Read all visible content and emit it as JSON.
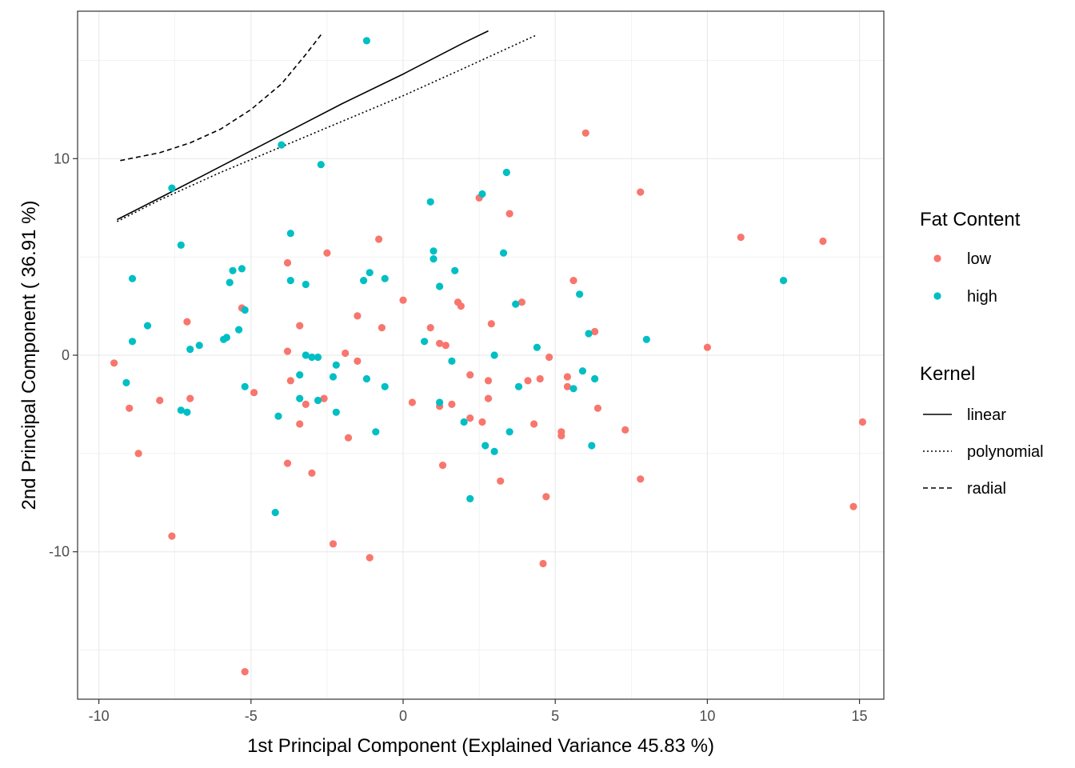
{
  "chart_data": {
    "type": "scatter",
    "title": "",
    "xlabel": "1st Principal Component (Explained Variance 45.83 %)",
    "ylabel": "2nd Principal Component ( 36.91 %)",
    "xlim": [
      -10.7,
      15.8
    ],
    "ylim": [
      -17.5,
      17.5
    ],
    "x_ticks": [
      -10,
      -5,
      0,
      5,
      10,
      15
    ],
    "x_tick_labels": [
      "-10",
      "-5",
      "0",
      "5",
      "10",
      "15"
    ],
    "y_ticks": [
      -10,
      0,
      10
    ],
    "y_tick_labels": [
      "-10",
      "0",
      "10"
    ],
    "grid": true,
    "legend_position": "right",
    "colors": {
      "low": "#F8766D",
      "high": "#00BFC4",
      "line": "#000000",
      "grid": "#ebebeb"
    },
    "series": [
      {
        "name": "low",
        "points": [
          [
            -9.5,
            -0.4
          ],
          [
            -9.0,
            -2.7
          ],
          [
            -8.7,
            -5.0
          ],
          [
            -8.0,
            -2.3
          ],
          [
            -7.6,
            -9.2
          ],
          [
            -7.1,
            1.7
          ],
          [
            -7.0,
            -2.2
          ],
          [
            -5.3,
            2.4
          ],
          [
            -5.2,
            -16.1
          ],
          [
            -4.9,
            -1.9
          ],
          [
            -3.8,
            4.7
          ],
          [
            -3.8,
            0.2
          ],
          [
            -3.7,
            -1.3
          ],
          [
            -3.8,
            -5.5
          ],
          [
            -3.4,
            1.5
          ],
          [
            -3.4,
            -3.5
          ],
          [
            -3.2,
            -2.5
          ],
          [
            -3.0,
            -6.0
          ],
          [
            -2.6,
            -2.2
          ],
          [
            -2.5,
            5.2
          ],
          [
            -2.3,
            -9.6
          ],
          [
            -1.9,
            0.1
          ],
          [
            -1.8,
            -4.2
          ],
          [
            -1.5,
            2.0
          ],
          [
            -1.5,
            -0.3
          ],
          [
            -1.1,
            -10.3
          ],
          [
            -0.8,
            5.9
          ],
          [
            -0.7,
            1.4
          ],
          [
            0.0,
            2.8
          ],
          [
            0.3,
            -2.4
          ],
          [
            0.9,
            1.4
          ],
          [
            1.2,
            0.6
          ],
          [
            1.2,
            -2.6
          ],
          [
            1.3,
            -5.6
          ],
          [
            1.4,
            0.5
          ],
          [
            1.6,
            -2.5
          ],
          [
            1.8,
            2.7
          ],
          [
            1.9,
            2.5
          ],
          [
            2.2,
            -1.0
          ],
          [
            2.2,
            -3.2
          ],
          [
            2.5,
            8.0
          ],
          [
            2.6,
            -3.4
          ],
          [
            2.8,
            -2.2
          ],
          [
            2.8,
            -1.3
          ],
          [
            2.9,
            1.6
          ],
          [
            3.2,
            -6.4
          ],
          [
            3.5,
            7.2
          ],
          [
            3.9,
            2.7
          ],
          [
            4.1,
            -1.3
          ],
          [
            4.3,
            -3.5
          ],
          [
            4.5,
            -1.2
          ],
          [
            4.6,
            -10.6
          ],
          [
            4.7,
            -7.2
          ],
          [
            4.8,
            -0.1
          ],
          [
            5.2,
            -4.1
          ],
          [
            5.2,
            -3.9
          ],
          [
            5.4,
            -1.1
          ],
          [
            5.4,
            -1.6
          ],
          [
            5.6,
            3.8
          ],
          [
            6.0,
            11.3
          ],
          [
            6.3,
            1.2
          ],
          [
            6.4,
            -2.7
          ],
          [
            7.3,
            -3.8
          ],
          [
            7.8,
            8.3
          ],
          [
            7.8,
            -6.3
          ],
          [
            10.0,
            0.4
          ],
          [
            11.1,
            6.0
          ],
          [
            13.8,
            5.8
          ],
          [
            14.8,
            -7.7
          ],
          [
            15.1,
            -3.4
          ]
        ]
      },
      {
        "name": "high",
        "points": [
          [
            -9.1,
            -1.4
          ],
          [
            -8.9,
            3.9
          ],
          [
            -8.9,
            0.7
          ],
          [
            -8.4,
            1.5
          ],
          [
            -7.6,
            8.5
          ],
          [
            -7.3,
            -2.8
          ],
          [
            -7.3,
            5.6
          ],
          [
            -7.1,
            -2.9
          ],
          [
            -7.0,
            0.3
          ],
          [
            -6.7,
            0.5
          ],
          [
            -5.9,
            0.8
          ],
          [
            -5.8,
            0.9
          ],
          [
            -5.7,
            3.7
          ],
          [
            -5.6,
            4.3
          ],
          [
            -5.4,
            1.3
          ],
          [
            -5.3,
            4.4
          ],
          [
            -5.2,
            -1.6
          ],
          [
            -5.2,
            2.3
          ],
          [
            -4.1,
            -3.1
          ],
          [
            -4.2,
            -8.0
          ],
          [
            -4.0,
            10.7
          ],
          [
            -3.7,
            6.2
          ],
          [
            -3.7,
            3.8
          ],
          [
            -3.4,
            -1.0
          ],
          [
            -3.4,
            -2.2
          ],
          [
            -3.2,
            3.6
          ],
          [
            -3.2,
            0.0
          ],
          [
            -3.0,
            -0.1
          ],
          [
            -2.8,
            -0.1
          ],
          [
            -2.8,
            -2.3
          ],
          [
            -2.7,
            9.7
          ],
          [
            -2.3,
            -1.1
          ],
          [
            -2.2,
            -0.5
          ],
          [
            -2.2,
            -2.9
          ],
          [
            -1.3,
            3.8
          ],
          [
            -1.2,
            -1.2
          ],
          [
            -1.1,
            4.2
          ],
          [
            -1.2,
            16.0
          ],
          [
            -0.9,
            -3.9
          ],
          [
            -0.6,
            3.9
          ],
          [
            -0.6,
            -1.6
          ],
          [
            0.7,
            0.7
          ],
          [
            0.9,
            7.8
          ],
          [
            1.0,
            4.9
          ],
          [
            1.0,
            5.3
          ],
          [
            1.2,
            3.5
          ],
          [
            1.2,
            -2.4
          ],
          [
            1.6,
            -0.3
          ],
          [
            1.7,
            4.3
          ],
          [
            2.0,
            -3.4
          ],
          [
            2.2,
            -7.3
          ],
          [
            2.6,
            8.2
          ],
          [
            2.7,
            -4.6
          ],
          [
            3.0,
            -4.9
          ],
          [
            3.0,
            0.0
          ],
          [
            3.3,
            5.2
          ],
          [
            3.4,
            9.3
          ],
          [
            3.5,
            -3.9
          ],
          [
            3.7,
            2.6
          ],
          [
            3.8,
            -1.6
          ],
          [
            4.4,
            0.4
          ],
          [
            5.6,
            -1.7
          ],
          [
            5.8,
            3.1
          ],
          [
            5.9,
            -0.8
          ],
          [
            6.1,
            1.1
          ],
          [
            6.2,
            -4.6
          ],
          [
            6.3,
            -1.2
          ],
          [
            8.0,
            0.8
          ],
          [
            12.5,
            3.8
          ]
        ]
      }
    ],
    "lines": [
      {
        "name": "linear",
        "points": [
          [
            -9.4,
            6.9
          ],
          [
            -8.0,
            8.0
          ],
          [
            -6.0,
            9.6
          ],
          [
            -4.0,
            11.2
          ],
          [
            -2.0,
            12.8
          ],
          [
            0.0,
            14.3
          ],
          [
            2.0,
            15.9
          ],
          [
            2.8,
            16.5
          ]
        ]
      },
      {
        "name": "polynomial",
        "points": [
          [
            -9.4,
            6.8
          ],
          [
            -8.0,
            7.9
          ],
          [
            -6.0,
            9.3
          ],
          [
            -4.0,
            10.6
          ],
          [
            -2.0,
            11.9
          ],
          [
            0.0,
            13.2
          ],
          [
            2.0,
            14.6
          ],
          [
            4.4,
            16.3
          ]
        ]
      },
      {
        "name": "radial",
        "points": [
          [
            -9.3,
            9.9
          ],
          [
            -8.0,
            10.3
          ],
          [
            -7.0,
            10.8
          ],
          [
            -6.0,
            11.5
          ],
          [
            -5.0,
            12.5
          ],
          [
            -4.0,
            13.8
          ],
          [
            -3.2,
            15.3
          ],
          [
            -2.7,
            16.3
          ]
        ]
      }
    ],
    "legends": [
      {
        "title": "Fat Content",
        "entries": [
          {
            "label": "low",
            "kind": "point",
            "color": "#F8766D"
          },
          {
            "label": "high",
            "kind": "point",
            "color": "#00BFC4"
          }
        ]
      },
      {
        "title": "Kernel",
        "entries": [
          {
            "label": "linear",
            "kind": "line",
            "dash": "solid"
          },
          {
            "label": "polynomial",
            "kind": "line",
            "dash": "dotted"
          },
          {
            "label": "radial",
            "kind": "line",
            "dash": "dashed"
          }
        ]
      }
    ]
  }
}
